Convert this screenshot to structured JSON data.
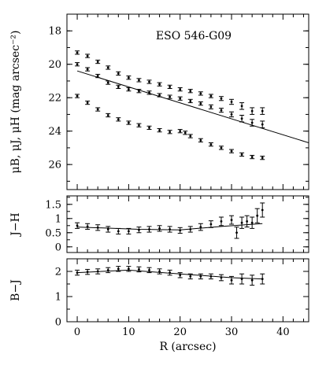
{
  "chart_data": [
    {
      "panel": "top",
      "type": "scatter",
      "title": "ESO 546-G09",
      "ylabel": "μB, μJ, μH (mag arcsec⁻²)",
      "xlabel": "",
      "xlim": [
        -2,
        45
      ],
      "ylim": [
        27.5,
        17
      ],
      "y_inverted": true,
      "xticks": [
        0,
        10,
        20,
        30,
        40
      ],
      "yticks": [
        18,
        20,
        22,
        24,
        26
      ],
      "ytick_labels": [
        "18",
        "20",
        "22",
        "24",
        "26"
      ],
      "error_bars": true,
      "series": [
        {
          "x": [
            0,
            2,
            4,
            6,
            8,
            10,
            12,
            14,
            16,
            18,
            20,
            22,
            24,
            26,
            28,
            30,
            32,
            34,
            36
          ],
          "y": [
            19.3,
            19.5,
            19.85,
            20.2,
            20.55,
            20.8,
            20.95,
            21.05,
            21.2,
            21.35,
            21.5,
            21.6,
            21.75,
            21.9,
            22.05,
            22.25,
            22.5,
            22.8,
            22.8
          ],
          "err": [
            0.1,
            0.1,
            0.1,
            0.1,
            0.1,
            0.1,
            0.1,
            0.1,
            0.1,
            0.1,
            0.1,
            0.1,
            0.1,
            0.1,
            0.12,
            0.15,
            0.2,
            0.2,
            0.2
          ]
        },
        {
          "x": [
            0,
            2,
            4,
            6,
            8,
            10,
            12,
            14,
            16,
            18,
            20,
            22,
            24,
            26,
            28,
            30,
            32,
            34,
            36
          ],
          "y": [
            20.0,
            20.3,
            20.7,
            21.1,
            21.35,
            21.5,
            21.6,
            21.7,
            21.85,
            21.95,
            22.05,
            22.2,
            22.35,
            22.55,
            22.75,
            23.0,
            23.25,
            23.5,
            23.6
          ],
          "err": [
            0.1,
            0.1,
            0.1,
            0.1,
            0.1,
            0.1,
            0.1,
            0.1,
            0.1,
            0.1,
            0.1,
            0.1,
            0.1,
            0.12,
            0.12,
            0.15,
            0.2,
            0.2,
            0.2
          ]
        },
        {
          "x": [
            0,
            2,
            4,
            6,
            8,
            10,
            12,
            14,
            16,
            18,
            20,
            21,
            22,
            24,
            26,
            28,
            30,
            32,
            34,
            36
          ],
          "y": [
            21.9,
            22.3,
            22.7,
            23.05,
            23.3,
            23.5,
            23.65,
            23.8,
            23.95,
            24.05,
            24.0,
            24.1,
            24.3,
            24.55,
            24.8,
            25.0,
            25.2,
            25.4,
            25.55,
            25.6
          ],
          "err": [
            0.1,
            0.1,
            0.1,
            0.1,
            0.1,
            0.1,
            0.1,
            0.1,
            0.1,
            0.1,
            0.1,
            0.1,
            0.1,
            0.1,
            0.1,
            0.1,
            0.1,
            0.1,
            0.1,
            0.1
          ]
        }
      ],
      "fit_lines": [
        {
          "x": [
            0,
            45
          ],
          "y": [
            20.4,
            24.7
          ]
        }
      ]
    },
    {
      "panel": "middle",
      "type": "scatter",
      "ylabel": "J−H",
      "xlim": [
        -2,
        45
      ],
      "ylim": [
        -0.2,
        1.8
      ],
      "yticks": [
        0,
        0.5,
        1,
        1.5
      ],
      "ytick_labels": [
        "0",
        "0.5",
        "1",
        "1.5"
      ],
      "error_bars": true,
      "series": [
        {
          "x": [
            0,
            2,
            4,
            6,
            8,
            10,
            12,
            14,
            16,
            18,
            20,
            22,
            24,
            26,
            28,
            30,
            31,
            32,
            33,
            34,
            35,
            36
          ],
          "y": [
            0.75,
            0.72,
            0.68,
            0.62,
            0.55,
            0.55,
            0.6,
            0.62,
            0.65,
            0.62,
            0.58,
            0.62,
            0.7,
            0.8,
            0.9,
            0.95,
            0.5,
            0.85,
            0.9,
            0.85,
            1.1,
            1.3
          ],
          "err": [
            0.1,
            0.1,
            0.1,
            0.1,
            0.1,
            0.1,
            0.1,
            0.1,
            0.1,
            0.1,
            0.1,
            0.1,
            0.12,
            0.12,
            0.15,
            0.15,
            0.2,
            0.2,
            0.2,
            0.2,
            0.25,
            0.25
          ]
        }
      ],
      "fit_lines": [
        {
          "x": [
            0,
            12,
            20,
            28,
            36
          ],
          "y": [
            0.7,
            0.62,
            0.6,
            0.72,
            0.82
          ]
        }
      ]
    },
    {
      "panel": "bottom",
      "type": "scatter",
      "ylabel": "B−J",
      "xlabel": "R (arcsec)",
      "xlim": [
        -2,
        45
      ],
      "ylim": [
        0,
        2.5
      ],
      "yticks": [
        0,
        1,
        2
      ],
      "ytick_labels": [
        "0",
        "1",
        "2"
      ],
      "xticks": [
        0,
        10,
        20,
        30,
        40
      ],
      "xtick_labels": [
        "0",
        "10",
        "20",
        "30",
        "40"
      ],
      "error_bars": true,
      "series": [
        {
          "x": [
            0,
            2,
            4,
            6,
            8,
            10,
            12,
            14,
            16,
            18,
            20,
            22,
            24,
            26,
            28,
            30,
            32,
            34,
            36
          ],
          "y": [
            1.95,
            1.98,
            2.0,
            2.05,
            2.1,
            2.1,
            2.08,
            2.05,
            2.0,
            1.95,
            1.85,
            1.8,
            1.8,
            1.8,
            1.75,
            1.65,
            1.7,
            1.65,
            1.7
          ],
          "err": [
            0.1,
            0.1,
            0.1,
            0.1,
            0.1,
            0.1,
            0.1,
            0.1,
            0.1,
            0.1,
            0.1,
            0.1,
            0.1,
            0.1,
            0.12,
            0.15,
            0.2,
            0.2,
            0.2
          ]
        }
      ],
      "fit_lines": [
        {
          "x": [
            0,
            10,
            20,
            30,
            36
          ],
          "y": [
            1.95,
            2.05,
            1.9,
            1.75,
            1.7
          ]
        }
      ]
    }
  ]
}
